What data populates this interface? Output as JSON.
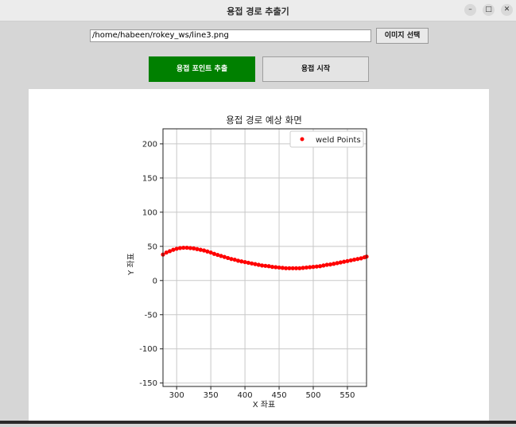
{
  "window": {
    "title": "용접 경로 추출기",
    "minimize_glyph": "–",
    "maximize_glyph": "□",
    "close_glyph": "✕"
  },
  "path_input": {
    "value": "/home/habeen/rokey_ws/line3.png"
  },
  "buttons": {
    "select_image": "이미지 선택",
    "extract_points": "용접 포인트 추출",
    "start_welding": "용접 시작"
  },
  "colors": {
    "extract_button": "#008000",
    "points": "#ff0000"
  },
  "chart_data": {
    "type": "scatter",
    "title": "용접 경로 예상 화면",
    "xlabel": "X 좌표",
    "ylabel": "Y 좌표",
    "xlim": [
      280,
      578
    ],
    "ylim": [
      -155,
      222
    ],
    "xticks": [
      300,
      350,
      400,
      450,
      500,
      550
    ],
    "yticks": [
      -150,
      -100,
      -50,
      0,
      50,
      100,
      150,
      200
    ],
    "grid": true,
    "legend_position": "top-right",
    "series": [
      {
        "name": "weld Points",
        "color": "#ff0000",
        "x": [
          280,
          285,
          290,
          295,
          300,
          305,
          310,
          315,
          320,
          325,
          330,
          335,
          340,
          345,
          350,
          355,
          360,
          365,
          370,
          375,
          380,
          385,
          390,
          395,
          400,
          405,
          410,
          415,
          420,
          425,
          430,
          435,
          440,
          445,
          450,
          455,
          460,
          465,
          470,
          475,
          480,
          485,
          490,
          495,
          500,
          505,
          510,
          515,
          520,
          525,
          530,
          535,
          540,
          545,
          550,
          555,
          560,
          565,
          570,
          575,
          578
        ],
        "y": [
          38,
          41,
          43,
          45,
          46.5,
          47.5,
          48,
          48,
          47.5,
          47,
          46,
          45,
          44,
          42.5,
          41,
          39,
          37.5,
          36,
          34.5,
          33,
          31.5,
          30.5,
          29,
          28,
          27,
          26,
          25,
          24,
          23,
          22,
          21.5,
          21,
          20,
          19.5,
          19,
          18.5,
          18,
          18,
          18,
          18,
          18,
          18.5,
          19,
          19.5,
          20,
          20.5,
          21,
          22,
          23,
          23.5,
          24.5,
          25.5,
          26.5,
          27.5,
          28.5,
          29.5,
          30.5,
          31.5,
          32.5,
          34,
          35
        ]
      }
    ]
  }
}
